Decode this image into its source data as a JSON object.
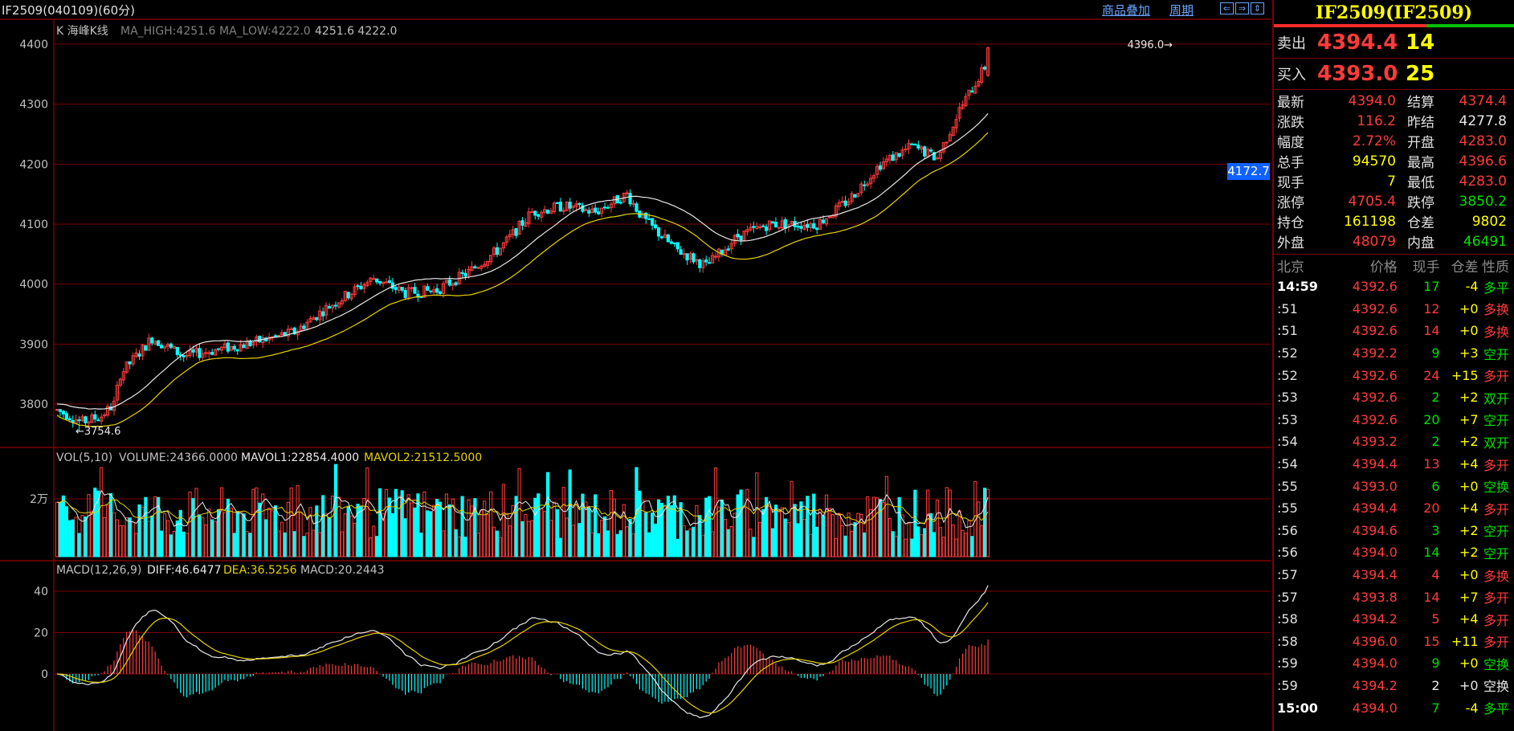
{
  "window": {
    "title": "IF2509(040109)(60分)",
    "links": [
      "商品叠加",
      "周期"
    ],
    "buttons": [
      "⇐",
      "⇒",
      "⇕"
    ]
  },
  "main_panel": {
    "legend_prefix": "K  海峰K线",
    "ma_high_label": "MA_HIGH:4251.6",
    "ma_low_label": "MA_LOW:4222.0",
    "ma_values": "4251.6 4222.0",
    "high_marker": "4396.0",
    "low_marker": "3754.6",
    "current_price": "4172.7",
    "y_ticks": [
      "4400",
      "4300",
      "4200",
      "4100",
      "4000",
      "3900",
      "3800"
    ]
  },
  "volume_panel": {
    "label": "VOL(5,10)",
    "volume": "VOLUME:24366.0000",
    "mavol1": "MAVOL1:22854.4000",
    "mavol2": "MAVOL2:21512.5000",
    "y_ticks": [
      "2万"
    ]
  },
  "macd_panel": {
    "label": "MACD(12,26,9)",
    "diff": "DIFF:46.6477",
    "dea": "DEA:36.5256",
    "macd": "MACD:20.2443",
    "y_ticks": [
      "40",
      "20",
      "0"
    ]
  },
  "quote": {
    "title": "IF2509(IF2509)",
    "sell": {
      "label": "卖出",
      "price": "4394.4",
      "vol": "14"
    },
    "buy": {
      "label": "买入",
      "price": "4393.0",
      "vol": "25"
    },
    "stats": [
      {
        "k1": "最新",
        "v1": "4394.0",
        "c1": "red",
        "k2": "结算",
        "v2": "4374.4",
        "c2": "red"
      },
      {
        "k1": "涨跌",
        "v1": "116.2",
        "c1": "red",
        "k2": "昨结",
        "v2": "4277.8",
        "c2": "wht"
      },
      {
        "k1": "幅度",
        "v1": "2.72%",
        "c1": "red",
        "k2": "开盘",
        "v2": "4283.0",
        "c2": "red"
      },
      {
        "k1": "总手",
        "v1": "94570",
        "c1": "yel",
        "k2": "最高",
        "v2": "4396.6",
        "c2": "red"
      },
      {
        "k1": "现手",
        "v1": "7",
        "c1": "yel",
        "k2": "最低",
        "v2": "4283.0",
        "c2": "red"
      },
      {
        "k1": "涨停",
        "v1": "4705.4",
        "c1": "red",
        "k2": "跌停",
        "v2": "3850.2",
        "c2": "green"
      },
      {
        "k1": "持仓",
        "v1": "161198",
        "c1": "yel",
        "k2": "仓差",
        "v2": "9802",
        "c2": "yel"
      },
      {
        "k1": "外盘",
        "v1": "48079",
        "c1": "red",
        "k2": "内盘",
        "v2": "46491",
        "c2": "green"
      }
    ],
    "tick_headers": [
      "北京",
      "价格",
      "现手",
      "仓差",
      "性质"
    ],
    "ticks": [
      {
        "t": "14:59",
        "full": true,
        "p": "4392.6",
        "v": "17",
        "vc": "green",
        "c": "-4",
        "cc": "yel",
        "n": "多平",
        "nc": "green"
      },
      {
        "t": ":51",
        "p": "4392.6",
        "v": "12",
        "vc": "red",
        "c": "+0",
        "cc": "yel",
        "n": "多换",
        "nc": "red"
      },
      {
        "t": ":51",
        "p": "4392.6",
        "v": "14",
        "vc": "red",
        "c": "+0",
        "cc": "yel",
        "n": "多换",
        "nc": "red"
      },
      {
        "t": ":52",
        "p": "4392.2",
        "v": "9",
        "vc": "green",
        "c": "+3",
        "cc": "yel",
        "n": "空开",
        "nc": "green"
      },
      {
        "t": ":52",
        "p": "4392.6",
        "v": "24",
        "vc": "red",
        "c": "+15",
        "cc": "yel",
        "n": "多开",
        "nc": "red"
      },
      {
        "t": ":53",
        "p": "4392.6",
        "v": "2",
        "vc": "green",
        "c": "+2",
        "cc": "yel",
        "n": "双开",
        "nc": "green"
      },
      {
        "t": ":53",
        "p": "4392.6",
        "v": "20",
        "vc": "green",
        "c": "+7",
        "cc": "yel",
        "n": "空开",
        "nc": "green"
      },
      {
        "t": ":54",
        "p": "4393.2",
        "v": "2",
        "vc": "green",
        "c": "+2",
        "cc": "yel",
        "n": "双开",
        "nc": "green"
      },
      {
        "t": ":54",
        "p": "4394.4",
        "v": "13",
        "vc": "red",
        "c": "+4",
        "cc": "yel",
        "n": "多开",
        "nc": "red"
      },
      {
        "t": ":55",
        "p": "4393.0",
        "v": "6",
        "vc": "green",
        "c": "+0",
        "cc": "yel",
        "n": "空换",
        "nc": "green"
      },
      {
        "t": ":55",
        "p": "4394.4",
        "v": "20",
        "vc": "red",
        "c": "+4",
        "cc": "yel",
        "n": "多开",
        "nc": "red"
      },
      {
        "t": ":56",
        "p": "4394.6",
        "v": "3",
        "vc": "green",
        "c": "+2",
        "cc": "yel",
        "n": "空开",
        "nc": "green"
      },
      {
        "t": ":56",
        "p": "4394.0",
        "v": "14",
        "vc": "green",
        "c": "+2",
        "cc": "yel",
        "n": "空开",
        "nc": "green"
      },
      {
        "t": ":57",
        "p": "4394.4",
        "v": "4",
        "vc": "red",
        "c": "+0",
        "cc": "yel",
        "n": "多换",
        "nc": "red"
      },
      {
        "t": ":57",
        "p": "4393.8",
        "v": "14",
        "vc": "red",
        "c": "+7",
        "cc": "yel",
        "n": "多开",
        "nc": "red"
      },
      {
        "t": ":58",
        "p": "4394.2",
        "v": "5",
        "vc": "red",
        "c": "+4",
        "cc": "yel",
        "n": "多开",
        "nc": "red"
      },
      {
        "t": ":58",
        "p": "4396.0",
        "v": "15",
        "vc": "red",
        "c": "+11",
        "cc": "yel",
        "n": "多开",
        "nc": "red"
      },
      {
        "t": ":59",
        "p": "4394.0",
        "v": "9",
        "vc": "green",
        "c": "+0",
        "cc": "yel",
        "n": "空换",
        "nc": "green"
      },
      {
        "t": ":59",
        "p": "4394.2",
        "v": "2",
        "vc": "wht",
        "c": "+0",
        "cc": "wht",
        "n": "空换",
        "nc": "wht"
      },
      {
        "t": "15:00",
        "full": true,
        "p": "4394.0",
        "v": "7",
        "vc": "green",
        "c": "-4",
        "cc": "yel",
        "n": "多平",
        "nc": "green"
      }
    ]
  },
  "colors": {
    "up": "#ff3b3b",
    "down": "#00ffff",
    "grid": "#7a0000",
    "ma_high": "#e8e8e8",
    "ma_low": "#e6d200"
  },
  "chart_data": {
    "type": "candlestick",
    "ylim": [
      3740,
      4420
    ],
    "anchors": [
      [
        0,
        3790
      ],
      [
        8,
        3770
      ],
      [
        14,
        3780
      ],
      [
        18,
        3800
      ],
      [
        20,
        3850
      ],
      [
        30,
        3910
      ],
      [
        40,
        3880
      ],
      [
        60,
        3900
      ],
      [
        75,
        3920
      ],
      [
        85,
        3960
      ],
      [
        100,
        4010
      ],
      [
        110,
        3985
      ],
      [
        120,
        3990
      ],
      [
        130,
        4020
      ],
      [
        140,
        4060
      ],
      [
        150,
        4120
      ],
      [
        160,
        4130
      ],
      [
        170,
        4120
      ],
      [
        180,
        4150
      ],
      [
        185,
        4110
      ],
      [
        195,
        4060
      ],
      [
        205,
        4030
      ],
      [
        215,
        4080
      ],
      [
        225,
        4100
      ],
      [
        240,
        4100
      ],
      [
        250,
        4140
      ],
      [
        260,
        4200
      ],
      [
        270,
        4230
      ],
      [
        278,
        4210
      ],
      [
        285,
        4290
      ],
      [
        295,
        4380
      ]
    ]
  }
}
